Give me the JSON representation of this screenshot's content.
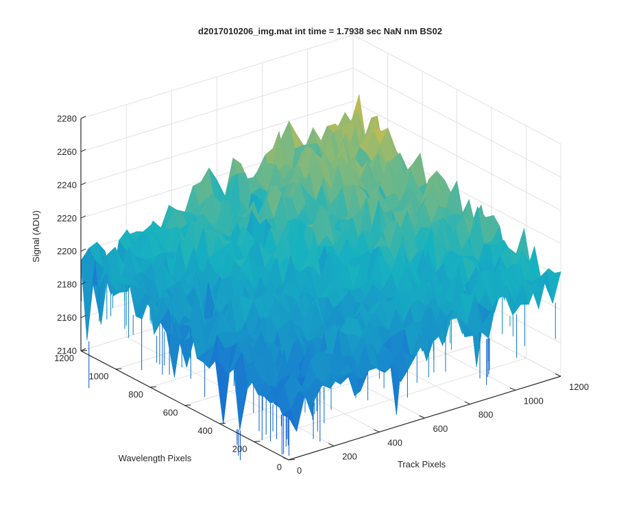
{
  "chart_data": {
    "type": "surface",
    "title": "d2017010206_img.mat int time = 1.7938 sec  NaN nm BS02",
    "xlabel": "Track Pixels",
    "ylabel": "Wavelength Pixels",
    "zlabel": "Signal (ADU)",
    "xlim": [
      0,
      1200
    ],
    "ylim": [
      0,
      1200
    ],
    "zlim": [
      2140,
      2280
    ],
    "x_ticks": [
      "0",
      "200",
      "400",
      "600",
      "800",
      "1000",
      "1200"
    ],
    "y_ticks": [
      "0",
      "200",
      "400",
      "600",
      "800",
      "1000",
      "1200"
    ],
    "z_ticks": [
      "2140",
      "2160",
      "2180",
      "2200",
      "2220",
      "2240",
      "2260",
      "2280"
    ],
    "grid": true,
    "colormap": "parula",
    "colors": {
      "low": "#1a62d6",
      "mid": "#17b2c0",
      "high": "#e8be3a",
      "axis": "#262626",
      "grid": "#e1e1e1"
    },
    "surface_corners": {
      "x0_y0": 2170,
      "x1200_y0": 2195,
      "x0_y1200": 2192,
      "x1200_y1200": 2235
    },
    "surface_noise_amplitude": 12
  }
}
